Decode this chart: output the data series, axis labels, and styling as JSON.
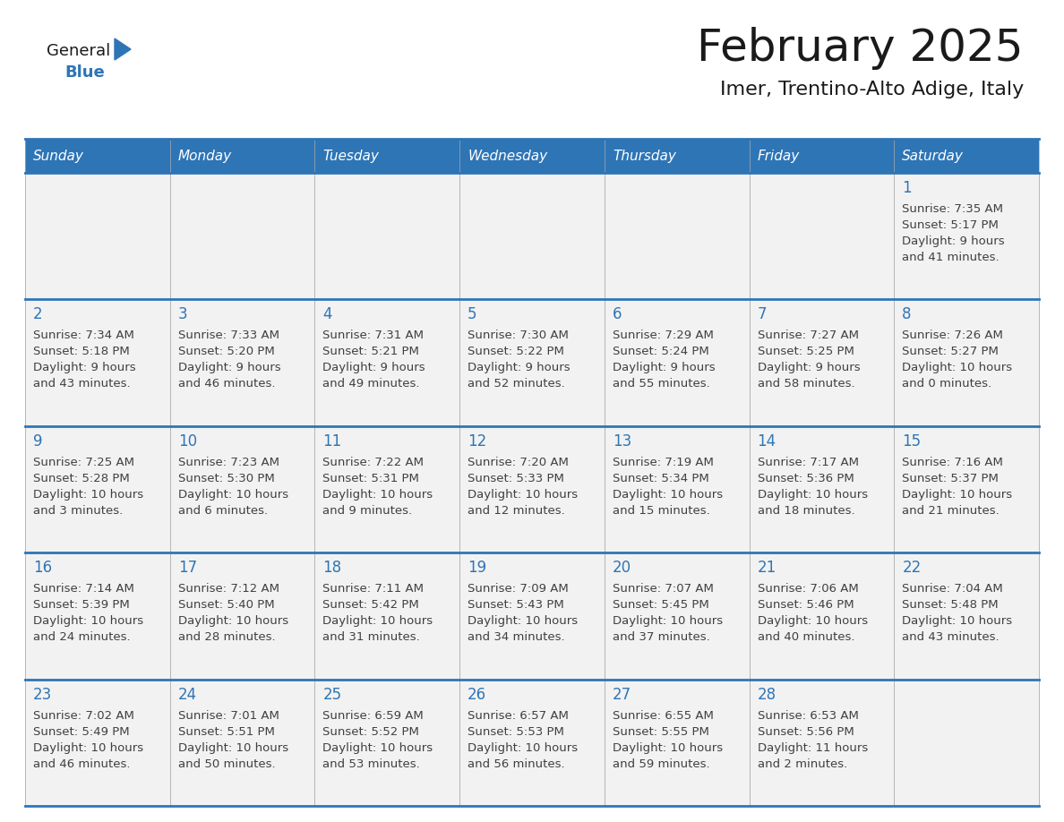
{
  "title": "February 2025",
  "subtitle": "Imer, Trentino-Alto Adige, Italy",
  "days_of_week": [
    "Sunday",
    "Monday",
    "Tuesday",
    "Wednesday",
    "Thursday",
    "Friday",
    "Saturday"
  ],
  "header_bg": "#2E75B6",
  "header_text": "#FFFFFF",
  "cell_bg_light": "#F2F2F2",
  "cell_bg_white": "#FFFFFF",
  "border_color": "#2E75B6",
  "day_number_color": "#2E75B6",
  "cell_text_color": "#404040",
  "title_color": "#1A1A1A",
  "subtitle_color": "#1A1A1A",
  "logo_general_color": "#1A1A1A",
  "logo_blue_color": "#2E75B6",
  "calendar_data": [
    [
      null,
      null,
      null,
      null,
      null,
      null,
      {
        "day": "1",
        "sunrise": "7:35 AM",
        "sunset": "5:17 PM",
        "daylight": "9 hours",
        "daylight2": "and 41 minutes."
      }
    ],
    [
      {
        "day": "2",
        "sunrise": "7:34 AM",
        "sunset": "5:18 PM",
        "daylight": "9 hours",
        "daylight2": "and 43 minutes."
      },
      {
        "day": "3",
        "sunrise": "7:33 AM",
        "sunset": "5:20 PM",
        "daylight": "9 hours",
        "daylight2": "and 46 minutes."
      },
      {
        "day": "4",
        "sunrise": "7:31 AM",
        "sunset": "5:21 PM",
        "daylight": "9 hours",
        "daylight2": "and 49 minutes."
      },
      {
        "day": "5",
        "sunrise": "7:30 AM",
        "sunset": "5:22 PM",
        "daylight": "9 hours",
        "daylight2": "and 52 minutes."
      },
      {
        "day": "6",
        "sunrise": "7:29 AM",
        "sunset": "5:24 PM",
        "daylight": "9 hours",
        "daylight2": "and 55 minutes."
      },
      {
        "day": "7",
        "sunrise": "7:27 AM",
        "sunset": "5:25 PM",
        "daylight": "9 hours",
        "daylight2": "and 58 minutes."
      },
      {
        "day": "8",
        "sunrise": "7:26 AM",
        "sunset": "5:27 PM",
        "daylight": "10 hours",
        "daylight2": "and 0 minutes."
      }
    ],
    [
      {
        "day": "9",
        "sunrise": "7:25 AM",
        "sunset": "5:28 PM",
        "daylight": "10 hours",
        "daylight2": "and 3 minutes."
      },
      {
        "day": "10",
        "sunrise": "7:23 AM",
        "sunset": "5:30 PM",
        "daylight": "10 hours",
        "daylight2": "and 6 minutes."
      },
      {
        "day": "11",
        "sunrise": "7:22 AM",
        "sunset": "5:31 PM",
        "daylight": "10 hours",
        "daylight2": "and 9 minutes."
      },
      {
        "day": "12",
        "sunrise": "7:20 AM",
        "sunset": "5:33 PM",
        "daylight": "10 hours",
        "daylight2": "and 12 minutes."
      },
      {
        "day": "13",
        "sunrise": "7:19 AM",
        "sunset": "5:34 PM",
        "daylight": "10 hours",
        "daylight2": "and 15 minutes."
      },
      {
        "day": "14",
        "sunrise": "7:17 AM",
        "sunset": "5:36 PM",
        "daylight": "10 hours",
        "daylight2": "and 18 minutes."
      },
      {
        "day": "15",
        "sunrise": "7:16 AM",
        "sunset": "5:37 PM",
        "daylight": "10 hours",
        "daylight2": "and 21 minutes."
      }
    ],
    [
      {
        "day": "16",
        "sunrise": "7:14 AM",
        "sunset": "5:39 PM",
        "daylight": "10 hours",
        "daylight2": "and 24 minutes."
      },
      {
        "day": "17",
        "sunrise": "7:12 AM",
        "sunset": "5:40 PM",
        "daylight": "10 hours",
        "daylight2": "and 28 minutes."
      },
      {
        "day": "18",
        "sunrise": "7:11 AM",
        "sunset": "5:42 PM",
        "daylight": "10 hours",
        "daylight2": "and 31 minutes."
      },
      {
        "day": "19",
        "sunrise": "7:09 AM",
        "sunset": "5:43 PM",
        "daylight": "10 hours",
        "daylight2": "and 34 minutes."
      },
      {
        "day": "20",
        "sunrise": "7:07 AM",
        "sunset": "5:45 PM",
        "daylight": "10 hours",
        "daylight2": "and 37 minutes."
      },
      {
        "day": "21",
        "sunrise": "7:06 AM",
        "sunset": "5:46 PM",
        "daylight": "10 hours",
        "daylight2": "and 40 minutes."
      },
      {
        "day": "22",
        "sunrise": "7:04 AM",
        "sunset": "5:48 PM",
        "daylight": "10 hours",
        "daylight2": "and 43 minutes."
      }
    ],
    [
      {
        "day": "23",
        "sunrise": "7:02 AM",
        "sunset": "5:49 PM",
        "daylight": "10 hours",
        "daylight2": "and 46 minutes."
      },
      {
        "day": "24",
        "sunrise": "7:01 AM",
        "sunset": "5:51 PM",
        "daylight": "10 hours",
        "daylight2": "and 50 minutes."
      },
      {
        "day": "25",
        "sunrise": "6:59 AM",
        "sunset": "5:52 PM",
        "daylight": "10 hours",
        "daylight2": "and 53 minutes."
      },
      {
        "day": "26",
        "sunrise": "6:57 AM",
        "sunset": "5:53 PM",
        "daylight": "10 hours",
        "daylight2": "and 56 minutes."
      },
      {
        "day": "27",
        "sunrise": "6:55 AM",
        "sunset": "5:55 PM",
        "daylight": "10 hours",
        "daylight2": "and 59 minutes."
      },
      {
        "day": "28",
        "sunrise": "6:53 AM",
        "sunset": "5:56 PM",
        "daylight": "11 hours",
        "daylight2": "and 2 minutes."
      },
      null
    ]
  ]
}
